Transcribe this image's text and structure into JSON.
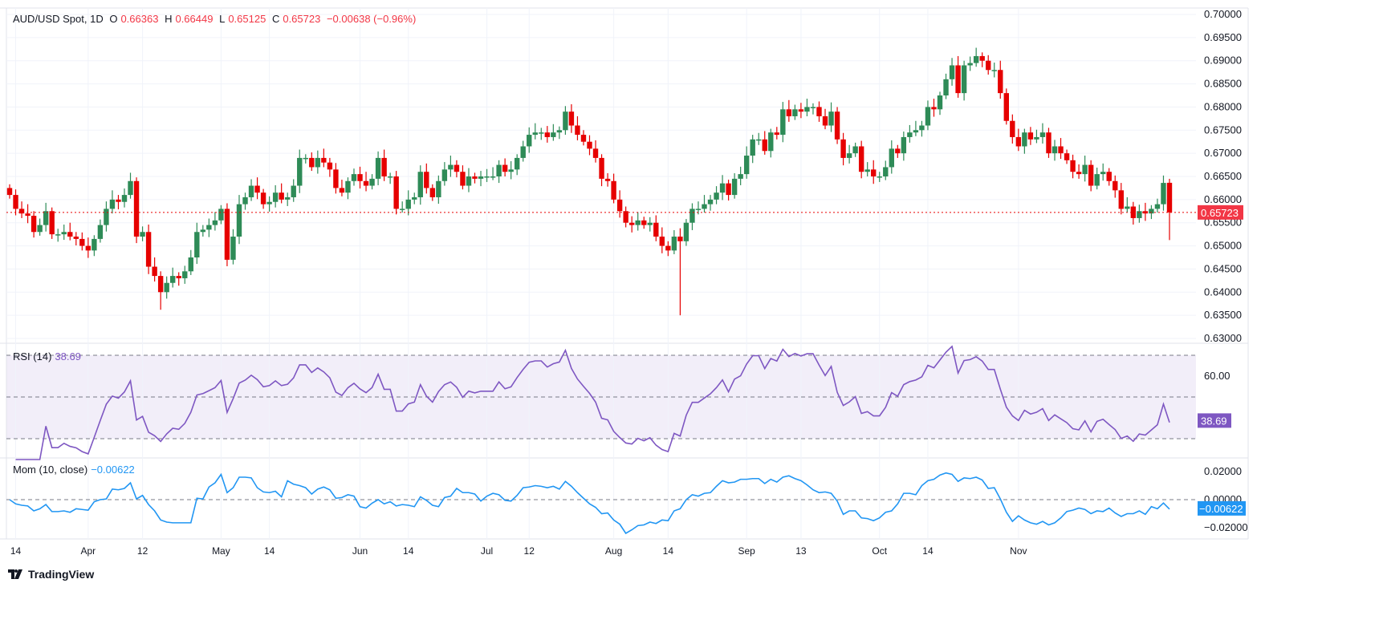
{
  "header": {
    "symbol": "AUD/USD Spot, 1D",
    "o_label": "O",
    "o": "0.66363",
    "h_label": "H",
    "h": "0.66449",
    "l_label": "L",
    "l": "0.65125",
    "c_label": "C",
    "c": "0.65723",
    "change": "−0.00638 (−0.96%)"
  },
  "rsi": {
    "label": "RSI (14)",
    "value": "38.69",
    "color": "#7e57c2",
    "ticks": [
      "60.00"
    ],
    "levels": [
      70,
      50,
      30
    ]
  },
  "mom": {
    "label": "Mom (10, close)",
    "value": "−0.00622",
    "color": "#2196f3",
    "ticks": [
      "0.02000",
      "0.00000",
      "−0.02000"
    ]
  },
  "logo": {
    "text": "TradingView"
  },
  "colors": {
    "up": "#2e8b57",
    "down": "#e60000",
    "grid": "#f0f3fa"
  },
  "chart_data": {
    "type": "candlestick",
    "title": "AUD/USD Spot, 1D",
    "ylim": [
      0.63,
      0.7
    ],
    "y_ticks": [
      "0.70000",
      "0.69500",
      "0.69000",
      "0.68500",
      "0.68000",
      "0.67500",
      "0.67000",
      "0.66500",
      "0.66000",
      "0.65500",
      "0.65000",
      "0.64500",
      "0.64000",
      "0.63500",
      "0.63000"
    ],
    "last_price": "0.65723",
    "x_ticks": [
      {
        "label": "14",
        "index": 1
      },
      {
        "label": "Apr",
        "index": 13
      },
      {
        "label": "12",
        "index": 22
      },
      {
        "label": "May",
        "index": 35
      },
      {
        "label": "14",
        "index": 43
      },
      {
        "label": "Jun",
        "index": 58
      },
      {
        "label": "14",
        "index": 66
      },
      {
        "label": "Jul",
        "index": 79
      },
      {
        "label": "12",
        "index": 86
      },
      {
        "label": "Aug",
        "index": 100
      },
      {
        "label": "14",
        "index": 109
      },
      {
        "label": "Sep",
        "index": 122
      },
      {
        "label": "13",
        "index": 131
      },
      {
        "label": "Oct",
        "index": 144
      },
      {
        "label": "14",
        "index": 152
      },
      {
        "label": "Nov",
        "index": 167
      }
    ],
    "first_open": 0.6625,
    "close": [
      0.661,
      0.658,
      0.657,
      0.6565,
      0.653,
      0.6545,
      0.6575,
      0.6525,
      0.6525,
      0.653,
      0.652,
      0.6515,
      0.65,
      0.649,
      0.6515,
      0.6545,
      0.658,
      0.66,
      0.6595,
      0.661,
      0.664,
      0.652,
      0.653,
      0.6455,
      0.6435,
      0.64,
      0.642,
      0.6435,
      0.643,
      0.6445,
      0.6475,
      0.653,
      0.6535,
      0.6545,
      0.6555,
      0.658,
      0.647,
      0.652,
      0.659,
      0.6605,
      0.663,
      0.6615,
      0.659,
      0.6595,
      0.6615,
      0.66,
      0.6605,
      0.663,
      0.669,
      0.669,
      0.667,
      0.669,
      0.668,
      0.6665,
      0.6625,
      0.6615,
      0.664,
      0.6655,
      0.664,
      0.663,
      0.6645,
      0.669,
      0.665,
      0.665,
      0.658,
      0.658,
      0.66,
      0.6605,
      0.666,
      0.6625,
      0.6605,
      0.664,
      0.6665,
      0.6675,
      0.666,
      0.663,
      0.665,
      0.6645,
      0.665,
      0.665,
      0.665,
      0.6675,
      0.666,
      0.6665,
      0.669,
      0.6715,
      0.674,
      0.6745,
      0.6745,
      0.6735,
      0.6745,
      0.675,
      0.679,
      0.676,
      0.674,
      0.6725,
      0.671,
      0.669,
      0.6645,
      0.664,
      0.66,
      0.6575,
      0.655,
      0.6545,
      0.6555,
      0.6545,
      0.655,
      0.652,
      0.65,
      0.649,
      0.652,
      0.651,
      0.655,
      0.658,
      0.658,
      0.659,
      0.66,
      0.6615,
      0.6635,
      0.661,
      0.6645,
      0.6655,
      0.6695,
      0.673,
      0.673,
      0.6705,
      0.6745,
      0.674,
      0.6795,
      0.678,
      0.6795,
      0.679,
      0.68,
      0.68,
      0.678,
      0.676,
      0.679,
      0.673,
      0.669,
      0.67,
      0.6715,
      0.666,
      0.6665,
      0.665,
      0.665,
      0.667,
      0.671,
      0.67,
      0.6735,
      0.6745,
      0.675,
      0.676,
      0.68,
      0.6795,
      0.6825,
      0.686,
      0.689,
      0.683,
      0.689,
      0.6895,
      0.691,
      0.69,
      0.688,
      0.688,
      0.683,
      0.677,
      0.6735,
      0.6715,
      0.6745,
      0.673,
      0.6735,
      0.6745,
      0.67,
      0.6715,
      0.67,
      0.6685,
      0.666,
      0.6655,
      0.6675,
      0.663,
      0.6655,
      0.666,
      0.664,
      0.662,
      0.658,
      0.6585,
      0.656,
      0.6575,
      0.657,
      0.658,
      0.659,
      0.6636,
      0.65723
    ],
    "notable_lows": [
      {
        "index": 111,
        "low": 0.635
      },
      {
        "index": 25,
        "low": 0.6362
      }
    ],
    "last_candle": {
      "o": 0.66363,
      "h": 0.66449,
      "l": 0.65125,
      "c": 0.65723
    }
  }
}
